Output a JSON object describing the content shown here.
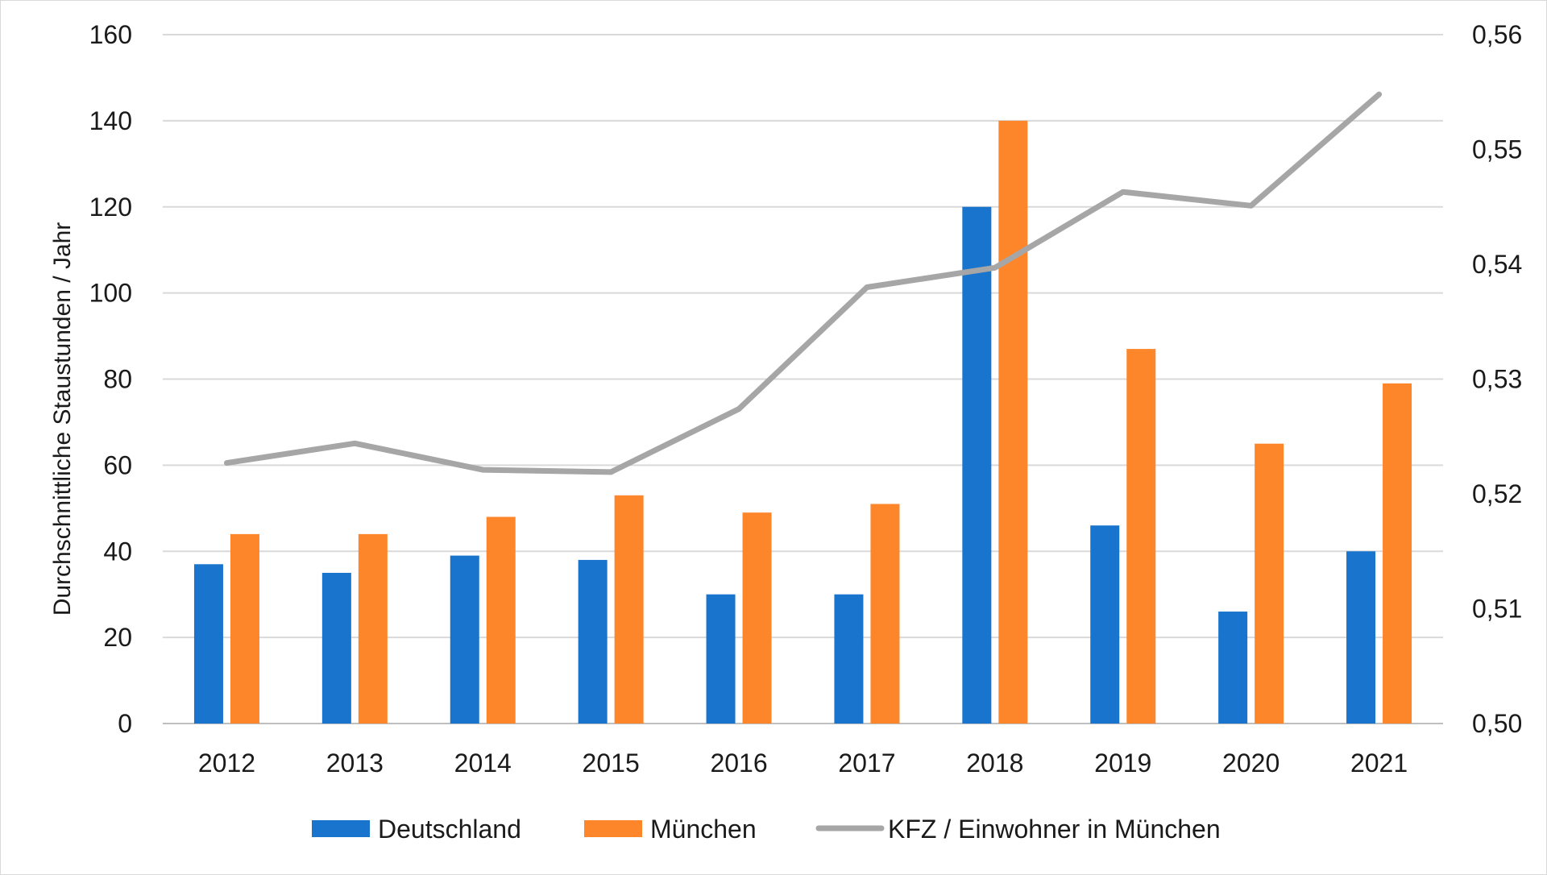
{
  "chart_data": {
    "type": "bar",
    "categories": [
      "2012",
      "2013",
      "2014",
      "2015",
      "2016",
      "2017",
      "2018",
      "2019",
      "2020",
      "2021"
    ],
    "series": [
      {
        "name": "Deutschland",
        "type": "bar",
        "axis": "left",
        "color": "#1874cd",
        "values": [
          37,
          35,
          39,
          38,
          30,
          30,
          120,
          46,
          26,
          40
        ]
      },
      {
        "name": "München",
        "type": "bar",
        "axis": "left",
        "color": "#fd862b",
        "values": [
          44,
          44,
          48,
          53,
          49,
          51,
          140,
          87,
          65,
          79
        ]
      },
      {
        "name": "KFZ / Einwohner in München",
        "type": "line",
        "axis": "right",
        "color": "#a6a6a6",
        "values": [
          0.5227,
          0.5244,
          0.5221,
          0.5219,
          0.5274,
          0.538,
          0.5397,
          0.5463,
          0.5451,
          0.5548
        ]
      }
    ],
    "ylabel": "Durchschnittliche Staustunden / Jahr",
    "ylim": [
      0,
      160
    ],
    "y_ticks": [
      "0",
      "20",
      "40",
      "60",
      "80",
      "100",
      "120",
      "140",
      "160"
    ],
    "y2lim": [
      0.5,
      0.56
    ],
    "y2_ticks": [
      "0,50",
      "0,51",
      "0,52",
      "0,53",
      "0,54",
      "0,55",
      "0,56"
    ],
    "grid": true,
    "legend": "bottom"
  }
}
